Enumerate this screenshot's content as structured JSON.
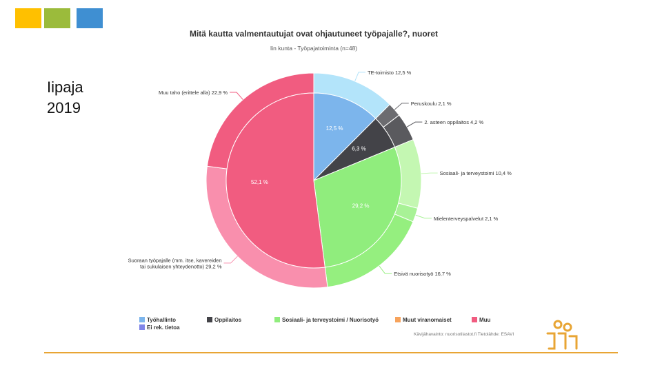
{
  "slide": {
    "title_line1": "Iipaja",
    "title_line2": "2019"
  },
  "colors": {
    "square_1": "#FFC000",
    "square_2": "#9BBB3B",
    "square_3": "#3F8FD2",
    "footer_line": "#E8A534",
    "logo": "#E8A534"
  },
  "logo": {
    "icon": "people-logo-icon"
  },
  "chart_data": {
    "type": "pie",
    "title": "Mitä kautta valmentautujat ovat ohjautuneet työpajalle?, nuoret",
    "subtitle": "Iin kunta - Työpajatoiminta (n=48)",
    "inner": {
      "slices": [
        {
          "label": "12,5 %",
          "value": 12.5,
          "color": "#7CB5EC"
        },
        {
          "label": "6,3 %",
          "value": 6.3,
          "color": "#434348"
        },
        {
          "label": "29,2 %",
          "value": 29.2,
          "color": "#90ED7D"
        },
        {
          "label": "52,1 %",
          "value": 52.1,
          "color": "#F15C80"
        }
      ]
    },
    "outer": {
      "slices": [
        {
          "label": "TE-toimisto 12,5 %",
          "value": 12.5,
          "color": "#B3E4FA"
        },
        {
          "label": "Peruskoulu 2,1 %",
          "value": 2.1,
          "color": "#6C6C70"
        },
        {
          "label": "2. asteen oppilaitos 4,2 %",
          "value": 4.2,
          "color": "#5A5A5E"
        },
        {
          "label": "Sosiaali- ja terveystoimi 10,4 %",
          "value": 10.4,
          "color": "#C4F7B2"
        },
        {
          "label": "Mielenterveyspalvelut 2,1 %",
          "value": 2.1,
          "color": "#A8F296"
        },
        {
          "label": "Etsivä nuorisotyö 16,7 %",
          "value": 16.7,
          "color": "#95EF7F"
        },
        {
          "label_lines": [
            "Suoraan työpajalle (mm. itse, kavereiden",
            "tai sukulaisen yhteydenotto) 29,2 %"
          ],
          "value": 29.2,
          "color": "#F98FAD"
        },
        {
          "label": "Muu taho (erittele alla) 22,9 %",
          "value": 22.9,
          "color": "#F15C80"
        }
      ]
    },
    "legend": {
      "placement": "bottom",
      "items": [
        {
          "label": "Työhallinto",
          "color": "#7CB5EC"
        },
        {
          "label": "Oppilaitos",
          "color": "#434348"
        },
        {
          "label": "Sosiaali- ja terveystoimi / Nuorisotyö",
          "color": "#90ED7D"
        },
        {
          "label": "Muut viranomaiset",
          "color": "#F7A35C"
        },
        {
          "label": "Muu",
          "color": "#F15C80"
        },
        {
          "label": "Ei rek. tietoa",
          "color": "#8085E9"
        }
      ]
    },
    "source": "Kävijähavainto: nuorisotilastot.fi    Tietolähde: ESAVI"
  }
}
